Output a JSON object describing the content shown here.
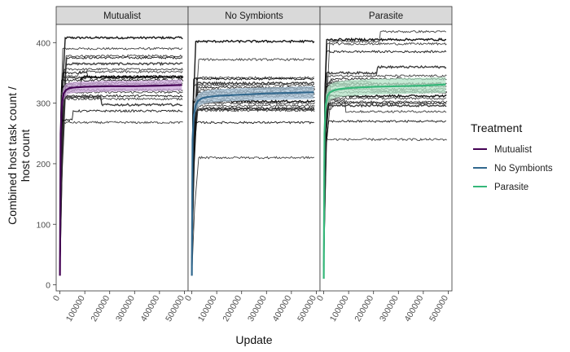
{
  "chart_data": {
    "type": "line",
    "facets": [
      "Mutualist",
      "No Symbionts",
      "Parasite"
    ],
    "xlabel": "Update",
    "ylabel_lines": [
      "Combined host task count /",
      "host count"
    ],
    "xticks": [
      0,
      100000,
      200000,
      300000,
      400000,
      500000
    ],
    "xtick_labels": [
      "0",
      "100000",
      "200000",
      "300000",
      "400000",
      "500000"
    ],
    "yticks": [
      0,
      100,
      200,
      300,
      400
    ],
    "ytick_labels": [
      "0",
      "100",
      "200",
      "300",
      "400"
    ],
    "xlim": [
      -15000,
      515000
    ],
    "ylim": [
      -10,
      430
    ],
    "legend": {
      "title": "Treatment",
      "position": "right",
      "entries": [
        {
          "name": "Mutualist",
          "color": "#440154"
        },
        {
          "name": "No Symbionts",
          "color": "#31688e"
        },
        {
          "name": "Parasite",
          "color": "#35b779"
        }
      ]
    },
    "panels": [
      {
        "facet": "Mutualist",
        "color": "#440154",
        "band_color": "#c9a6d8",
        "mean": {
          "x": [
            0,
            3000,
            8000,
            15000,
            25000,
            40000,
            60000,
            100000,
            200000,
            300000,
            400000,
            490000
          ],
          "y": [
            15,
            250,
            300,
            316,
            322,
            325,
            326,
            327,
            328,
            328,
            329,
            330
          ]
        },
        "band": {
          "lower": [
            15,
            235,
            285,
            305,
            312,
            316,
            317,
            318,
            319,
            320,
            320,
            321
          ],
          "upper": [
            15,
            265,
            312,
            327,
            332,
            334,
            335,
            336,
            337,
            337,
            338,
            339
          ]
        },
        "runs": [
          408,
          390,
          378,
          375,
          365,
          356,
          350,
          345,
          342,
          338,
          333,
          330,
          327,
          322,
          318,
          312,
          310,
          307,
          272,
          268
        ]
      },
      {
        "facet": "No Symbionts",
        "color": "#31688e",
        "band_color": "#a7c2d6",
        "mean": {
          "x": [
            0,
            3000,
            8000,
            15000,
            25000,
            40000,
            60000,
            100000,
            200000,
            300000,
            400000,
            490000
          ],
          "y": [
            15,
            240,
            280,
            296,
            304,
            308,
            310,
            312,
            314,
            316,
            317,
            318
          ]
        },
        "band": {
          "lower": [
            15,
            225,
            265,
            285,
            293,
            298,
            300,
            302,
            304,
            305,
            306,
            307
          ],
          "upper": [
            15,
            255,
            294,
            308,
            315,
            319,
            321,
            323,
            325,
            326,
            327,
            328
          ]
        },
        "runs": [
          402,
          372,
          342,
          340,
          333,
          330,
          326,
          322,
          318,
          314,
          311,
          307,
          303,
          300,
          296,
          292,
          290,
          288,
          268,
          210
        ]
      },
      {
        "facet": "Parasite",
        "color": "#35b779",
        "band_color": "#b3e2c6",
        "mean": {
          "x": [
            0,
            3000,
            8000,
            15000,
            25000,
            40000,
            60000,
            100000,
            200000,
            300000,
            400000,
            490000
          ],
          "y": [
            10,
            250,
            298,
            312,
            318,
            321,
            323,
            325,
            327,
            328,
            329,
            331
          ]
        },
        "band": {
          "lower": [
            10,
            232,
            282,
            298,
            305,
            308,
            310,
            312,
            314,
            315,
            316,
            317
          ],
          "upper": [
            10,
            268,
            314,
            326,
            331,
            334,
            336,
            338,
            340,
            341,
            342,
            343
          ]
        },
        "runs": [
          405,
          402,
          398,
          385,
          350,
          345,
          340,
          336,
          332,
          328,
          323,
          318,
          312,
          308,
          305,
          300,
          296,
          290,
          270,
          240
        ]
      }
    ]
  }
}
